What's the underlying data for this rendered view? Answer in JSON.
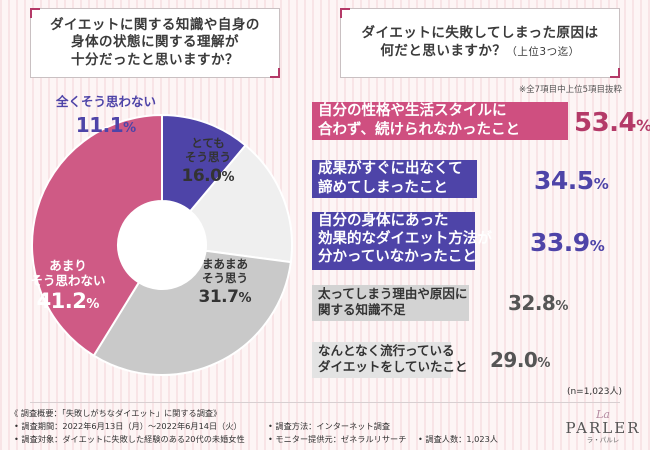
{
  "question1": {
    "text": "ダイエットに関する知識や自身の\n身体の状態に関する理解が\n十分だったと思いますか？"
  },
  "question2": {
    "text": "ダイエットに失敗してしまった原因は\n何だと思いますか？",
    "sub": "（上位3つ迄）"
  },
  "note_top": "※全7項目中上位5項目抜粋",
  "note_n": "(n=1,023人)",
  "colors": {
    "accent": "#b43a68",
    "pie": [
      "#4e44a8",
      "#efefef",
      "#c9c9c9",
      "#cf5a85"
    ],
    "bars": [
      "#cf4f80",
      "#4e44a8",
      "#4e44a8",
      "#d3d3d3",
      "#e3e3e3"
    ]
  },
  "chart_data": [
    {
      "type": "pie",
      "title": "ダイエットに関する知識や自身の身体の状態に関する理解が十分だったと思いますか？",
      "categories": [
        "全くそう思わない",
        "とてもそう思う",
        "まあまあそう思う",
        "あまりそう思わない"
      ],
      "values": [
        11.1,
        16.0,
        31.7,
        41.2
      ],
      "unit": "%",
      "label_lines": [
        [
          "全くそう思わない"
        ],
        [
          "とても",
          "そう思う"
        ],
        [
          "まあまあ",
          "そう思う"
        ],
        [
          "あまり",
          "そう思わない"
        ]
      ],
      "value_labels": [
        "11.1",
        "16.0",
        "31.7",
        "41.2"
      ]
    },
    {
      "type": "bar",
      "title": "ダイエットに失敗してしまった原因は何だと思いますか？（上位3つ迄）",
      "categories": [
        "自分の性格や生活スタイルに\n合わず、続けられなかったこと",
        "成果がすぐに出なくて\n諦めてしまったこと",
        "自分の身体にあった\n効果的なダイエット方法が\n分かっていなかったこと",
        "太ってしまう理由や原因に\n関する知識不足",
        "なんとなく流行っている\nダイエットをしていたこと"
      ],
      "values": [
        53.4,
        34.5,
        33.9,
        32.8,
        29.0
      ],
      "value_labels": [
        "53.4",
        "34.5",
        "33.9",
        "32.8",
        "29.0"
      ],
      "unit": "%"
    }
  ],
  "footer": {
    "overview": "《 調査概要：「失敗しがちなダイエット」に関する調査》",
    "period": "• 調査期間：2022年6月13日（月）～2022年6月14日（火）",
    "target": "• 調査対象：ダイエットに失敗した経験のある20代の未婚女性",
    "method": "• 調査方法：インターネット調査",
    "provider": "• モニター提供元：ゼネラルリサーチ",
    "count": "• 調査人数：1,023人"
  },
  "logo": {
    "script": "La",
    "brand": "PARLER",
    "kana": "ラ・パルレ"
  }
}
